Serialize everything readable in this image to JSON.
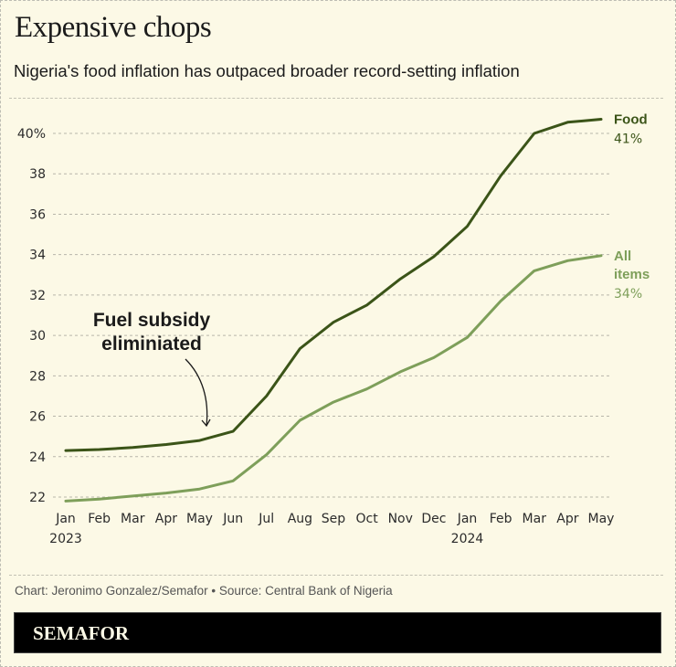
{
  "header": {
    "title": "Expensive chops",
    "subtitle": "Nigeria's food inflation has outpaced broader record-setting inflation"
  },
  "footer": {
    "credit": "Chart: Jeronimo Gonzalez/Semafor • Source: Central Bank of Nigeria",
    "brand": "SEMAFOR"
  },
  "colors": {
    "background": "#fcf9e6",
    "food": "#3b5418",
    "all_items": "#7e9f5a",
    "grid": "#b8b6aa",
    "brand_bar": "#000000"
  },
  "chart_data": {
    "type": "line",
    "title": "Expensive chops",
    "subtitle": "Nigeria's food inflation has outpaced broader record-setting inflation",
    "xlabel": "",
    "ylabel": "",
    "x": [
      "Jan",
      "Feb",
      "Mar",
      "Apr",
      "May",
      "Jun",
      "Jul",
      "Aug",
      "Sep",
      "Oct",
      "Nov",
      "Dec",
      "Jan",
      "Feb",
      "Mar",
      "Apr",
      "May"
    ],
    "x_year_labels": [
      {
        "index": 0,
        "label": "2023"
      },
      {
        "index": 12,
        "label": "2024"
      }
    ],
    "ylim": [
      22,
      41
    ],
    "yticks": [
      22,
      24,
      26,
      28,
      30,
      32,
      34,
      36,
      38,
      40
    ],
    "ytick_labels": [
      "22",
      "24",
      "26",
      "28",
      "30",
      "32",
      "34",
      "36",
      "38",
      "40%"
    ],
    "grid": true,
    "series": [
      {
        "name": "Food",
        "end_label": [
          "Food"
        ],
        "end_value_label": "41%",
        "values": [
          24.3,
          24.35,
          24.45,
          24.6,
          24.8,
          25.25,
          27.0,
          29.35,
          30.65,
          31.5,
          32.8,
          33.9,
          35.4,
          37.9,
          40.0,
          40.55,
          40.7
        ]
      },
      {
        "name": "All items",
        "end_label": [
          "All",
          "items"
        ],
        "end_value_label": "34%",
        "values": [
          21.8,
          21.9,
          22.05,
          22.2,
          22.4,
          22.8,
          24.1,
          25.8,
          26.7,
          27.35,
          28.2,
          28.9,
          29.9,
          31.7,
          33.2,
          33.7,
          33.95
        ]
      }
    ],
    "annotations": [
      {
        "text_lines": [
          "Fuel subsidy",
          "eliminiated"
        ],
        "points_to_index": 4,
        "series": "Food"
      }
    ]
  }
}
